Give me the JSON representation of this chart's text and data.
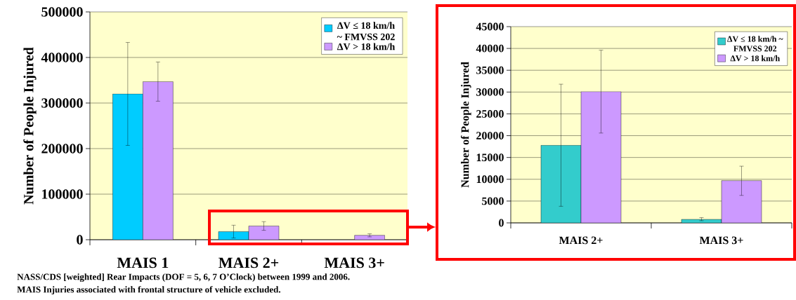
{
  "chart_data": [
    {
      "type": "bar",
      "ylabel": "Number of People Injured",
      "categories": [
        "MAIS 1",
        "MAIS 2+",
        "MAIS 3+"
      ],
      "series": [
        {
          "name": "ΔV ≤ 18 km/h ~ FMVSS 202",
          "color": "#00ccff",
          "values": [
            320000,
            17800,
            null
          ],
          "errors": [
            [
              207000,
              433000
            ],
            [
              3800,
              31800
            ],
            null
          ]
        },
        {
          "name": "ΔV > 18 km/h",
          "color": "#cc99ff",
          "values": [
            347000,
            30100,
            9700
          ],
          "errors": [
            [
              304000,
              390000
            ],
            [
              20600,
              39600
            ],
            [
              6300,
              13000
            ]
          ]
        }
      ],
      "ylim": [
        0,
        500000
      ],
      "yticks": [
        0,
        100000,
        200000,
        300000,
        400000,
        500000
      ],
      "grid": "y",
      "legend": "top right",
      "annotations": [
        "NASS/CDS [weighted] Rear Impacts (DOF = 5, 6, 7 O’Clock) between 1999 and 2006.",
        "MAIS Injuries associated with frontal structure of vehicle excluded."
      ]
    },
    {
      "type": "bar",
      "ylabel": "Number of People Injured",
      "categories": [
        "MAIS 2+",
        "MAIS 3+"
      ],
      "series": [
        {
          "name": "ΔV ≤ 18 km/h ~ FMVSS 202",
          "color": "#33cccc",
          "values": [
            17800,
            800
          ],
          "errors": [
            [
              3800,
              31800
            ],
            [
              500,
              1200
            ]
          ]
        },
        {
          "name": "ΔV > 18 km/h",
          "color": "#cc99ff",
          "values": [
            30100,
            9700
          ],
          "errors": [
            [
              20600,
              39600
            ],
            [
              6300,
              13000
            ]
          ]
        }
      ],
      "ylim": [
        0,
        45000
      ],
      "yticks": [
        0,
        5000,
        10000,
        15000,
        20000,
        25000,
        30000,
        35000,
        40000,
        45000
      ],
      "grid": "y",
      "legend": "top right"
    }
  ]
}
